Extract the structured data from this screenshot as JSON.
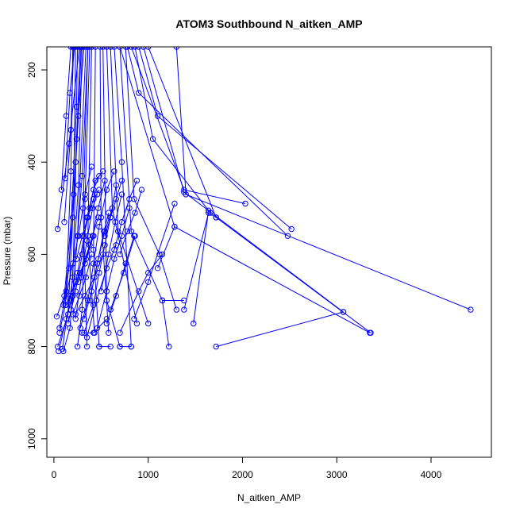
{
  "chart_data": {
    "type": "line",
    "title": "ATOM3 Southbound N_aitken_AMP",
    "xlabel": "N_aitken_AMP",
    "ylabel": "Pressure (mbar)",
    "xlim": [
      -75,
      4640
    ],
    "ylim": [
      1040,
      150
    ],
    "y_reversed": true,
    "x_ticks": [
      0,
      1000,
      2000,
      3000,
      4000
    ],
    "y_ticks": [
      200,
      400,
      600,
      800,
      1000
    ],
    "grid": false,
    "legend": "none",
    "color": "#0000ff",
    "series": [
      {
        "points": [
          [
            40,
            800
          ],
          [
            150,
            730
          ],
          [
            230,
            400
          ],
          [
            280,
            150
          ]
        ]
      },
      {
        "points": [
          [
            50,
            810
          ],
          [
            180,
            700
          ],
          [
            260,
            450
          ],
          [
            300,
            150
          ]
        ]
      },
      {
        "points": [
          [
            90,
            805
          ],
          [
            200,
            650
          ],
          [
            240,
            350
          ],
          [
            320,
            150
          ]
        ]
      },
      {
        "points": [
          [
            60,
            770
          ],
          [
            120,
            710
          ],
          [
            200,
            520
          ],
          [
            260,
            300
          ],
          [
            290,
            150
          ]
        ]
      },
      {
        "points": [
          [
            100,
            810
          ],
          [
            170,
            760
          ],
          [
            250,
            560
          ],
          [
            340,
            150
          ]
        ]
      },
      {
        "points": [
          [
            130,
            740
          ],
          [
            200,
            690
          ],
          [
            300,
            430
          ],
          [
            360,
            150
          ]
        ]
      },
      {
        "points": [
          [
            250,
            800
          ],
          [
            300,
            720
          ],
          [
            330,
            480
          ],
          [
            380,
            150
          ]
        ]
      },
      {
        "points": [
          [
            30,
            735
          ],
          [
            110,
            690
          ],
          [
            210,
            470
          ],
          [
            230,
            150
          ]
        ]
      },
      {
        "points": [
          [
            60,
            760
          ],
          [
            130,
            680
          ],
          [
            180,
            420
          ],
          [
            200,
            150
          ]
        ]
      },
      {
        "points": [
          [
            100,
            710
          ],
          [
            160,
            630
          ],
          [
            240,
            280
          ],
          [
            250,
            150
          ]
        ]
      },
      {
        "points": [
          [
            40,
            545
          ],
          [
            160,
            360
          ],
          [
            270,
            150
          ]
        ]
      },
      {
        "points": [
          [
            110,
            530
          ],
          [
            180,
            330
          ],
          [
            210,
            150
          ]
        ]
      },
      {
        "points": [
          [
            80,
            460
          ],
          [
            130,
            300
          ],
          [
            180,
            150
          ]
        ]
      },
      {
        "points": [
          [
            120,
            435
          ],
          [
            170,
            250
          ],
          [
            220,
            150
          ]
        ]
      },
      {
        "points": [
          [
            350,
            800
          ],
          [
            310,
            500
          ],
          [
            360,
            150
          ]
        ]
      },
      {
        "points": [
          [
            430,
            770
          ],
          [
            360,
            560
          ],
          [
            400,
            150
          ]
        ]
      },
      {
        "points": [
          [
            480,
            800
          ],
          [
            420,
            590
          ],
          [
            440,
            150
          ]
        ]
      },
      {
        "points": [
          [
            580,
            770
          ],
          [
            500,
            520
          ],
          [
            490,
            150
          ]
        ]
      },
      {
        "points": [
          [
            700,
            800
          ],
          [
            560,
            700
          ],
          [
            520,
            150
          ]
        ]
      },
      {
        "points": [
          [
            880,
            750
          ],
          [
            620,
            500
          ],
          [
            560,
            150
          ]
        ]
      },
      {
        "points": [
          [
            1000,
            750
          ],
          [
            680,
            550
          ],
          [
            600,
            150
          ]
        ]
      },
      {
        "points": [
          [
            820,
            800
          ],
          [
            720,
            400
          ],
          [
            640,
            150
          ]
        ]
      },
      {
        "points": [
          [
            1220,
            800
          ],
          [
            1150,
            700
          ],
          [
            820,
            550
          ],
          [
            700,
            150
          ]
        ]
      },
      {
        "points": [
          [
            1300,
            720
          ],
          [
            1120,
            600
          ],
          [
            850,
            480
          ],
          [
            760,
            150
          ]
        ]
      },
      {
        "points": [
          [
            2030,
            490
          ],
          [
            1380,
            460
          ],
          [
            820,
            150
          ]
        ]
      },
      {
        "points": [
          [
            1660,
            510
          ],
          [
            1050,
            350
          ],
          [
            860,
            150
          ]
        ]
      },
      {
        "points": [
          [
            2520,
            545
          ],
          [
            1100,
            300
          ],
          [
            900,
            150
          ]
        ]
      },
      {
        "points": [
          [
            2480,
            560
          ],
          [
            900,
            250
          ],
          [
            780,
            150
          ]
        ]
      },
      {
        "points": [
          [
            3070,
            725
          ],
          [
            1380,
            465
          ],
          [
            950,
            150
          ]
        ]
      },
      {
        "points": [
          [
            3360,
            770
          ],
          [
            1720,
            520
          ],
          [
            1000,
            150
          ]
        ]
      },
      {
        "points": [
          [
            4420,
            720
          ],
          [
            1400,
            470
          ],
          [
            1300,
            150
          ]
        ]
      },
      {
        "points": [
          [
            3350,
            770
          ],
          [
            1280,
            540
          ],
          [
            700,
            150
          ]
        ]
      },
      {
        "points": [
          [
            1720,
            800
          ],
          [
            3070,
            725
          ]
        ]
      },
      {
        "points": [
          [
            1480,
            750
          ],
          [
            1640,
            505
          ]
        ]
      },
      {
        "points": [
          [
            1380,
            720
          ],
          [
            1640,
            510
          ],
          [
            1720,
            520
          ]
        ]
      },
      {
        "points": [
          [
            700,
            800
          ],
          [
            820,
            800
          ]
        ]
      },
      {
        "points": [
          [
            480,
            800
          ],
          [
            600,
            800
          ]
        ]
      },
      {
        "points": [
          [
            300,
            770
          ],
          [
            420,
            770
          ],
          [
            560,
            740
          ]
        ]
      },
      {
        "points": [
          [
            230,
            730
          ],
          [
            330,
            690
          ],
          [
            430,
            650
          ],
          [
            520,
            600
          ]
        ]
      },
      {
        "points": [
          [
            130,
            710
          ],
          [
            230,
            660
          ],
          [
            330,
            620
          ],
          [
            420,
            560
          ]
        ]
      },
      {
        "points": [
          [
            170,
            690
          ],
          [
            280,
            640
          ],
          [
            380,
            580
          ],
          [
            470,
            520
          ]
        ]
      },
      {
        "points": [
          [
            350,
            780
          ],
          [
            450,
            700
          ],
          [
            560,
            630
          ],
          [
            660,
            580
          ]
        ]
      },
      {
        "points": [
          [
            560,
            750
          ],
          [
            660,
            690
          ],
          [
            760,
            620
          ],
          [
            850,
            560
          ]
        ]
      },
      {
        "points": [
          [
            600,
            720
          ],
          [
            740,
            640
          ],
          [
            860,
            560
          ]
        ]
      },
      {
        "points": [
          [
            700,
            770
          ],
          [
            900,
            680
          ],
          [
            1000,
            640
          ],
          [
            1150,
            600
          ]
        ]
      },
      {
        "points": [
          [
            850,
            740
          ],
          [
            1000,
            660
          ],
          [
            1280,
            490
          ]
        ]
      },
      {
        "points": [
          [
            460,
            760
          ],
          [
            560,
            680
          ],
          [
            640,
            610
          ],
          [
            720,
            560
          ],
          [
            800,
            500
          ]
        ]
      },
      {
        "points": [
          [
            320,
            770
          ],
          [
            420,
            710
          ],
          [
            480,
            640
          ],
          [
            540,
            580
          ],
          [
            600,
            520
          ],
          [
            660,
            450
          ]
        ]
      },
      {
        "points": [
          [
            280,
            760
          ],
          [
            360,
            700
          ],
          [
            420,
            620
          ],
          [
            480,
            540
          ],
          [
            560,
            460
          ],
          [
            640,
            420
          ]
        ]
      },
      {
        "points": [
          [
            150,
            750
          ],
          [
            230,
            680
          ],
          [
            300,
            600
          ],
          [
            350,
            520
          ],
          [
            420,
            460
          ],
          [
            480,
            430
          ]
        ]
      },
      {
        "points": [
          [
            180,
            720
          ],
          [
            250,
            640
          ],
          [
            320,
            560
          ],
          [
            380,
            500
          ],
          [
            440,
            440
          ],
          [
            520,
            420
          ]
        ]
      },
      {
        "points": [
          [
            120,
            700
          ],
          [
            200,
            620
          ],
          [
            260,
            560
          ],
          [
            330,
            470
          ],
          [
            400,
            410
          ]
        ]
      },
      {
        "points": [
          [
            230,
            740
          ],
          [
            290,
            650
          ],
          [
            350,
            570
          ],
          [
            410,
            500
          ],
          [
            460,
            470
          ]
        ]
      },
      {
        "points": [
          [
            320,
            740
          ],
          [
            400,
            680
          ],
          [
            470,
            610
          ],
          [
            530,
            550
          ],
          [
            580,
            510
          ]
        ]
      },
      {
        "points": [
          [
            200,
            730
          ],
          [
            270,
            690
          ],
          [
            340,
            650
          ],
          [
            400,
            600
          ]
        ]
      },
      {
        "points": [
          [
            260,
            660
          ],
          [
            340,
            610
          ],
          [
            410,
            560
          ],
          [
            470,
            500
          ],
          [
            540,
            440
          ]
        ]
      },
      {
        "points": [
          [
            240,
            610
          ],
          [
            300,
            560
          ],
          [
            360,
            520
          ],
          [
            420,
            480
          ],
          [
            480,
            460
          ]
        ]
      },
      {
        "points": [
          [
            540,
            560
          ],
          [
            600,
            520
          ],
          [
            660,
            480
          ],
          [
            720,
            440
          ]
        ]
      },
      {
        "points": [
          [
            700,
            600
          ],
          [
            780,
            550
          ],
          [
            860,
            510
          ],
          [
            930,
            460
          ]
        ]
      },
      {
        "points": [
          [
            640,
            590
          ],
          [
            720,
            530
          ],
          [
            800,
            480
          ],
          [
            880,
            440
          ]
        ]
      },
      {
        "points": [
          [
            380,
            700
          ],
          [
            460,
            620
          ],
          [
            540,
            550
          ],
          [
            620,
            500
          ]
        ]
      },
      {
        "points": [
          [
            500,
            680
          ],
          [
            580,
            600
          ],
          [
            650,
            530
          ],
          [
            720,
            470
          ]
        ]
      },
      {
        "points": [
          [
            1100,
            630
          ],
          [
            1280,
            540
          ]
        ]
      },
      {
        "points": [
          [
            1150,
            700
          ],
          [
            1380,
            700
          ]
        ]
      }
    ]
  }
}
